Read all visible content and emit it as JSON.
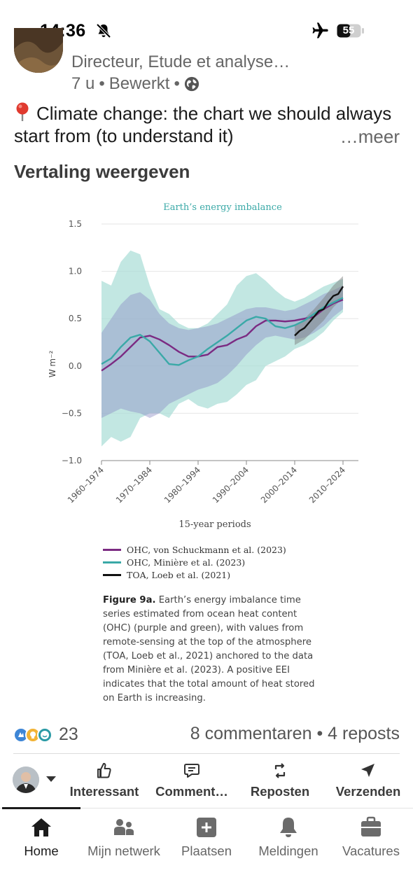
{
  "status_bar": {
    "time": "14:36",
    "battery": "55"
  },
  "post": {
    "author_subtitle": "Directeur, Etude et analyse…",
    "meta_time": "7 u",
    "meta_edited": "Bewerkt",
    "text": "Climate change: the chart we should always start from (to understand it)",
    "more": "…meer",
    "translate": "Vertaling weergeven"
  },
  "chart_data": {
    "type": "line",
    "title": "Earth’s energy imbalance",
    "xlabel": "15-year periods",
    "ylabel": "W m⁻²",
    "ylim": [
      -1.0,
      1.5
    ],
    "yticks": [
      "1.5",
      "1.0",
      "0.5",
      "0.0",
      "−0.5",
      "−1.0"
    ],
    "xticks": [
      "1960–1974",
      "1970–1984",
      "1980–1994",
      "1990–2004",
      "2000–2014",
      "2010–2024"
    ],
    "series": [
      {
        "name": "OHC, von Schuckmann et al. (2023)",
        "color": "#7b2a82",
        "x": [
          1960,
          1962,
          1964,
          1966,
          1968,
          1970,
          1972,
          1974,
          1976,
          1978,
          1980,
          1982,
          1984,
          1986,
          1988,
          1990,
          1992,
          1994,
          1996,
          1998,
          2000,
          2002,
          2004,
          2006,
          2008,
          2010
        ],
        "y": [
          -0.05,
          0.02,
          0.1,
          0.2,
          0.3,
          0.32,
          0.28,
          0.22,
          0.15,
          0.1,
          0.1,
          0.12,
          0.2,
          0.22,
          0.28,
          0.32,
          0.42,
          0.48,
          0.48,
          0.47,
          0.48,
          0.5,
          0.52,
          0.6,
          0.66,
          0.7
        ]
      },
      {
        "name": "OHC, Minière et al. (2023)",
        "color": "#3aa9a7",
        "x": [
          1960,
          1962,
          1964,
          1966,
          1968,
          1970,
          1972,
          1974,
          1976,
          1978,
          1980,
          1982,
          1984,
          1986,
          1988,
          1990,
          1992,
          1994,
          1996,
          1998,
          2000,
          2002,
          2004,
          2006,
          2008,
          2010
        ],
        "y": [
          0.02,
          0.08,
          0.2,
          0.3,
          0.33,
          0.26,
          0.14,
          0.02,
          0.01,
          0.06,
          0.1,
          0.18,
          0.25,
          0.32,
          0.4,
          0.48,
          0.52,
          0.5,
          0.42,
          0.4,
          0.43,
          0.48,
          0.55,
          0.62,
          0.67,
          0.72
        ]
      },
      {
        "name": "TOA, Loeb et al. (2021)",
        "color": "#111111",
        "x": [
          2000,
          2001,
          2002,
          2003,
          2004,
          2005,
          2006,
          2007,
          2008,
          2009,
          2010
        ],
        "y": [
          0.32,
          0.37,
          0.4,
          0.46,
          0.52,
          0.58,
          0.6,
          0.68,
          0.74,
          0.76,
          0.84
        ]
      }
    ],
    "legend_position": "bottom",
    "grid": true
  },
  "caption": {
    "label": "Figure 9a.",
    "text": "Earth’s energy imbalance time series estimated from ocean heat content (OHC) (purple and green), with values from remote-sensing at the top of the atmosphere (TOA, Loeb et al., 2021) anchored to the data from Minière et al. (2023). A positive EEI indicates that the total amount of heat stored on Earth is increasing."
  },
  "social": {
    "reaction_count": "23",
    "comments": "8 commentaren",
    "reposts": "4 reposts",
    "separator": "•"
  },
  "actions": [
    {
      "label": "Interessant",
      "icon": "like-icon"
    },
    {
      "label": "Comment…",
      "icon": "comment-icon"
    },
    {
      "label": "Reposten",
      "icon": "repost-icon"
    },
    {
      "label": "Verzenden",
      "icon": "send-icon"
    }
  ],
  "tabs": [
    {
      "label": "Home",
      "icon": "home-icon"
    },
    {
      "label": "Mijn netwerk",
      "icon": "network-icon"
    },
    {
      "label": "Plaatsen",
      "icon": "plus-icon"
    },
    {
      "label": "Meldingen",
      "icon": "bell-icon"
    },
    {
      "label": "Vacatures",
      "icon": "briefcase-icon"
    }
  ]
}
